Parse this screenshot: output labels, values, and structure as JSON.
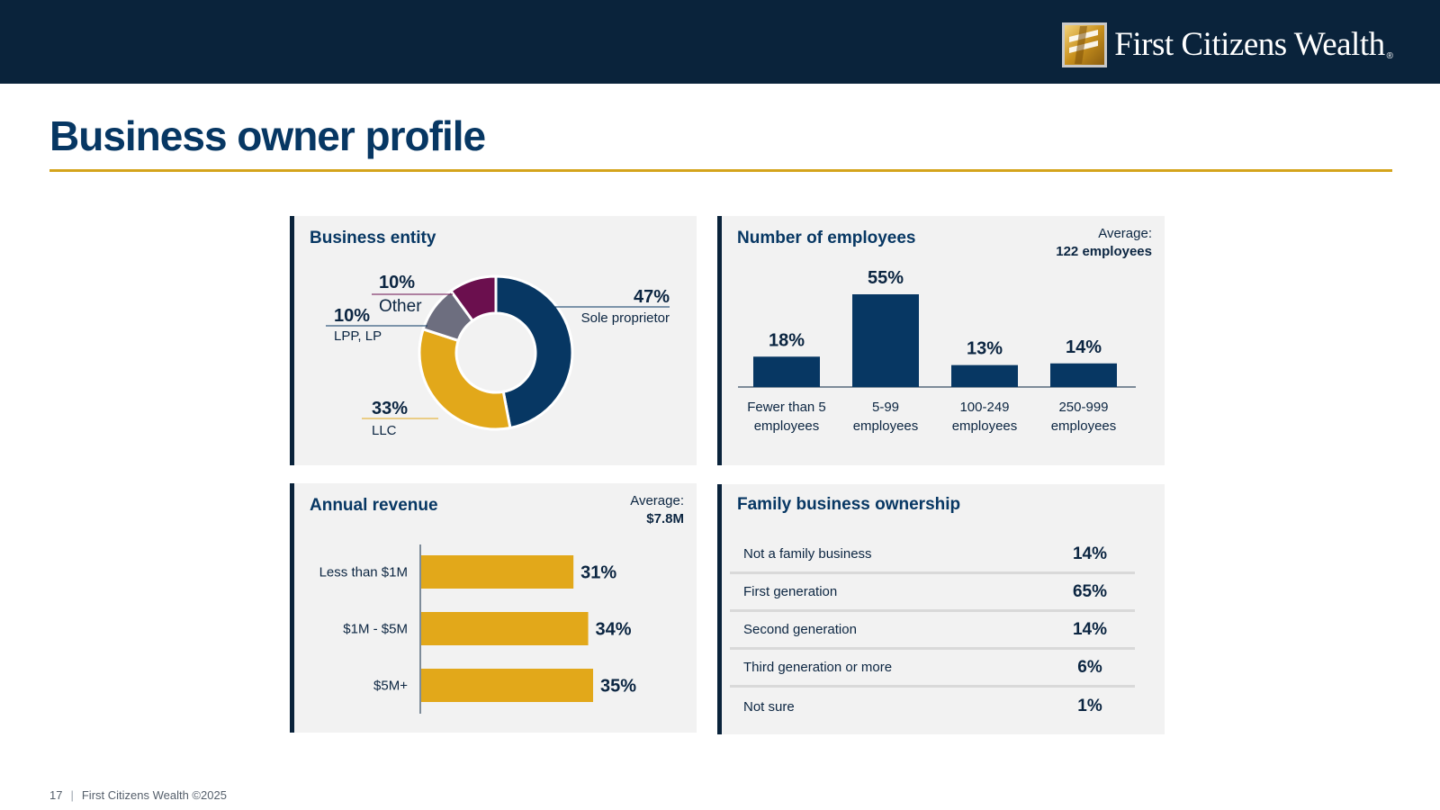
{
  "header": {
    "brand": "First Citizens Wealth",
    "brand_reg": "®"
  },
  "page": {
    "title": "Business owner profile"
  },
  "footer": {
    "page_number": "17",
    "separator": "|",
    "text": "First Citizens Wealth ©2025"
  },
  "colors": {
    "navy": "#073763",
    "gold": "#e2a81a",
    "gray": "#6d6e7f",
    "plum": "#6b0f4e",
    "dark": "#0a233b"
  },
  "chart_data": [
    {
      "type": "pie",
      "title": "Business entity",
      "donut": true,
      "slices": [
        {
          "label": "Sole proprietor",
          "value": 47,
          "display": "47%",
          "color": "#073763"
        },
        {
          "label": "LLC",
          "value": 33,
          "display": "33%",
          "color": "#e2a81a"
        },
        {
          "label": "LPP, LP",
          "value": 10,
          "display": "10%",
          "color": "#6d6e7f"
        },
        {
          "label": "Other",
          "value": 10,
          "display": "10%",
          "color": "#6b0f4e"
        }
      ]
    },
    {
      "type": "bar",
      "title": "Number of employees",
      "annotation": {
        "label": "Average:",
        "value": "122 employees"
      },
      "categories": [
        [
          "Fewer than 5",
          "employees"
        ],
        [
          "5-99",
          "employees"
        ],
        [
          "100-249",
          "employees"
        ],
        [
          "250-999",
          "employees"
        ]
      ],
      "values": [
        18,
        55,
        13,
        14
      ],
      "value_labels": [
        "18%",
        "55%",
        "13%",
        "14%"
      ],
      "ylim": [
        0,
        55
      ],
      "color": "#073763"
    },
    {
      "type": "bar",
      "orientation": "horizontal",
      "title": "Annual revenue",
      "annotation": {
        "label": "Average:",
        "value": "$7.8M"
      },
      "categories": [
        "Less than $1M",
        "$1M - $5M",
        "$5M+"
      ],
      "values": [
        31,
        34,
        35
      ],
      "value_labels": [
        "31%",
        "34%",
        "35%"
      ],
      "xlim": [
        0,
        35
      ],
      "color": "#e2a81a"
    },
    {
      "type": "table",
      "title": "Family business ownership",
      "rows": [
        {
          "label": "Not a family business",
          "value": "14%"
        },
        {
          "label": "First generation",
          "value": "65%"
        },
        {
          "label": "Second generation",
          "value": "14%"
        },
        {
          "label": "Third generation or more",
          "value": "6%"
        },
        {
          "label": "Not sure",
          "value": "1%"
        }
      ]
    }
  ]
}
